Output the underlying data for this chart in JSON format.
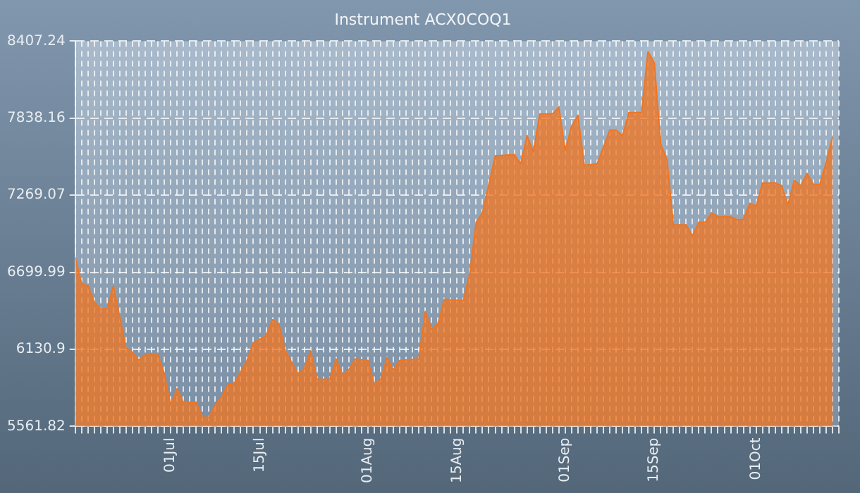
{
  "chart_data": {
    "type": "area",
    "title": "Instrument ACX0COQ1",
    "x": [
      "--06-16",
      "--06-17",
      "--06-18",
      "--06-19",
      "--06-20",
      "--06-21",
      "--06-22",
      "--06-23",
      "--06-24",
      "--06-25",
      "--06-26",
      "--06-27",
      "--06-29",
      "--06-30",
      "--07-01",
      "--07-02",
      "--07-03",
      "--07-05",
      "--07-06",
      "--07-07",
      "--07-08",
      "--07-09",
      "--07-10",
      "--07-11",
      "--07-13",
      "--07-14",
      "--07-16",
      "--07-17",
      "--07-18",
      "--07-19",
      "--07-21",
      "--07-22",
      "--07-23",
      "--07-24",
      "--07-26",
      "--07-27",
      "--07-28",
      "--07-29",
      "--07-30",
      "--08-01",
      "--08-02",
      "--08-03",
      "--08-04",
      "--08-05",
      "--08-06",
      "--08-09",
      "--08-10",
      "--08-11",
      "--08-12",
      "--08-13",
      "--08-16",
      "--08-17",
      "--08-18",
      "--08-19",
      "--08-20",
      "--08-21",
      "--08-24",
      "--08-25",
      "--08-26",
      "--08-27",
      "--08-28",
      "--08-30",
      "--08-31",
      "--09-01",
      "--09-02",
      "--09-03",
      "--09-04",
      "--09-06",
      "--09-08",
      "--09-09",
      "--09-10",
      "--09-11",
      "--09-13",
      "--09-14",
      "--09-15",
      "--09-16",
      "--09-17",
      "--09-18",
      "--09-20",
      "--09-21",
      "--09-22",
      "--09-23",
      "--09-24",
      "--09-25",
      "--09-27",
      "--09-28",
      "--09-29",
      "--09-30",
      "--10-01",
      "--10-02",
      "--10-04",
      "--10-05",
      "--10-06",
      "--10-07",
      "--10-08",
      "--10-09",
      "--10-10",
      "--10-11",
      "--10-12",
      "--10-13"
    ],
    "series": [
      {
        "color": "#ee7624",
        "values": [
          6810,
          6620,
          6600,
          6480,
          6430,
          6430,
          6600,
          6370,
          6140,
          6110,
          6050,
          6090,
          6090,
          5950,
          5720,
          5840,
          5740,
          5740,
          5630,
          5630,
          5720,
          5780,
          5870,
          5880,
          6050,
          6180,
          6230,
          6350,
          6320,
          6120,
          5950,
          5990,
          6120,
          5910,
          5910,
          6060,
          5940,
          5980,
          6060,
          6050,
          5870,
          5910,
          6070,
          5980,
          6050,
          6060,
          6410,
          6280,
          6320,
          6500,
          6490,
          6690,
          7070,
          7140,
          7350,
          7560,
          7570,
          7500,
          7710,
          7590,
          7870,
          7870,
          7920,
          7600,
          7780,
          7860,
          7490,
          7500,
          7750,
          7750,
          7710,
          7880,
          7880,
          8330,
          8250,
          7650,
          7530,
          7050,
          7050,
          6970,
          7070,
          7070,
          7140,
          7110,
          7110,
          7090,
          7090,
          7210,
          7190,
          7360,
          7360,
          7340,
          7200,
          7380,
          7340,
          7430,
          7350,
          7350,
          7510,
          7700
        ]
      }
    ],
    "xlim": [
      "--06-16",
      "--10-14"
    ],
    "xticks": [
      {
        "value": "--06-16",
        "label": null
      },
      {
        "value": "--06-17",
        "label": null
      },
      {
        "value": "--06-18",
        "label": null
      },
      {
        "value": "--06-19",
        "label": null
      },
      {
        "value": "--06-20",
        "label": null
      },
      {
        "value": "--06-21",
        "label": null
      },
      {
        "value": "--06-22",
        "label": null
      },
      {
        "value": "--06-23",
        "label": null
      },
      {
        "value": "--06-24",
        "label": null
      },
      {
        "value": "--06-25",
        "label": null
      },
      {
        "value": "--06-26",
        "label": null
      },
      {
        "value": "--06-27",
        "label": null
      },
      {
        "value": "--06-28",
        "label": null
      },
      {
        "value": "--06-29",
        "label": null
      },
      {
        "value": "--06-30",
        "label": null
      },
      {
        "value": "--07-01",
        "label": "01Jul"
      },
      {
        "value": "--07-02",
        "label": null
      },
      {
        "value": "--07-03",
        "label": null
      },
      {
        "value": "--07-04",
        "label": null
      },
      {
        "value": "--07-05",
        "label": null
      },
      {
        "value": "--07-06",
        "label": null
      },
      {
        "value": "--07-07",
        "label": null
      },
      {
        "value": "--07-08",
        "label": null
      },
      {
        "value": "--07-09",
        "label": null
      },
      {
        "value": "--07-10",
        "label": null
      },
      {
        "value": "--07-11",
        "label": null
      },
      {
        "value": "--07-12",
        "label": null
      },
      {
        "value": "--07-13",
        "label": null
      },
      {
        "value": "--07-14",
        "label": null
      },
      {
        "value": "--07-15",
        "label": "15Jul"
      },
      {
        "value": "--07-16",
        "label": null
      },
      {
        "value": "--07-17",
        "label": null
      },
      {
        "value": "--07-18",
        "label": null
      },
      {
        "value": "--07-19",
        "label": null
      },
      {
        "value": "--07-20",
        "label": null
      },
      {
        "value": "--07-21",
        "label": null
      },
      {
        "value": "--07-22",
        "label": null
      },
      {
        "value": "--07-23",
        "label": null
      },
      {
        "value": "--07-24",
        "label": null
      },
      {
        "value": "--07-25",
        "label": null
      },
      {
        "value": "--07-26",
        "label": null
      },
      {
        "value": "--07-27",
        "label": null
      },
      {
        "value": "--07-28",
        "label": null
      },
      {
        "value": "--07-29",
        "label": null
      },
      {
        "value": "--07-30",
        "label": null
      },
      {
        "value": "--07-31",
        "label": null
      },
      {
        "value": "--08-01",
        "label": "01Aug"
      },
      {
        "value": "--08-02",
        "label": null
      },
      {
        "value": "--08-03",
        "label": null
      },
      {
        "value": "--08-04",
        "label": null
      },
      {
        "value": "--08-05",
        "label": null
      },
      {
        "value": "--08-06",
        "label": null
      },
      {
        "value": "--08-07",
        "label": null
      },
      {
        "value": "--08-08",
        "label": null
      },
      {
        "value": "--08-09",
        "label": null
      },
      {
        "value": "--08-10",
        "label": null
      },
      {
        "value": "--08-11",
        "label": null
      },
      {
        "value": "--08-12",
        "label": null
      },
      {
        "value": "--08-13",
        "label": null
      },
      {
        "value": "--08-14",
        "label": null
      },
      {
        "value": "--08-15",
        "label": "15Aug"
      },
      {
        "value": "--08-16",
        "label": null
      },
      {
        "value": "--08-17",
        "label": null
      },
      {
        "value": "--08-18",
        "label": null
      },
      {
        "value": "--08-19",
        "label": null
      },
      {
        "value": "--08-20",
        "label": null
      },
      {
        "value": "--08-21",
        "label": null
      },
      {
        "value": "--08-22",
        "label": null
      },
      {
        "value": "--08-23",
        "label": null
      },
      {
        "value": "--08-24",
        "label": null
      },
      {
        "value": "--08-25",
        "label": null
      },
      {
        "value": "--08-26",
        "label": null
      },
      {
        "value": "--08-27",
        "label": null
      },
      {
        "value": "--08-28",
        "label": null
      },
      {
        "value": "--08-29",
        "label": null
      },
      {
        "value": "--08-30",
        "label": null
      },
      {
        "value": "--08-31",
        "label": null
      },
      {
        "value": "--09-01",
        "label": "01Sep"
      },
      {
        "value": "--09-02",
        "label": null
      },
      {
        "value": "--09-03",
        "label": null
      },
      {
        "value": "--09-04",
        "label": null
      },
      {
        "value": "--09-05",
        "label": null
      },
      {
        "value": "--09-06",
        "label": null
      },
      {
        "value": "--09-07",
        "label": null
      },
      {
        "value": "--09-08",
        "label": null
      },
      {
        "value": "--09-09",
        "label": null
      },
      {
        "value": "--09-10",
        "label": null
      },
      {
        "value": "--09-11",
        "label": null
      },
      {
        "value": "--09-12",
        "label": null
      },
      {
        "value": "--09-13",
        "label": null
      },
      {
        "value": "--09-14",
        "label": null
      },
      {
        "value": "--09-15",
        "label": "15Sep"
      },
      {
        "value": "--09-16",
        "label": null
      },
      {
        "value": "--09-17",
        "label": null
      },
      {
        "value": "--09-18",
        "label": null
      },
      {
        "value": "--09-19",
        "label": null
      },
      {
        "value": "--09-20",
        "label": null
      },
      {
        "value": "--09-21",
        "label": null
      },
      {
        "value": "--09-22",
        "label": null
      },
      {
        "value": "--09-23",
        "label": null
      },
      {
        "value": "--09-24",
        "label": null
      },
      {
        "value": "--09-25",
        "label": null
      },
      {
        "value": "--09-26",
        "label": null
      },
      {
        "value": "--09-27",
        "label": null
      },
      {
        "value": "--09-28",
        "label": null
      },
      {
        "value": "--09-29",
        "label": null
      },
      {
        "value": "--09-30",
        "label": null
      },
      {
        "value": "--10-01",
        "label": "01Oct"
      },
      {
        "value": "--10-02",
        "label": null
      },
      {
        "value": "--10-03",
        "label": null
      },
      {
        "value": "--10-04",
        "label": null
      },
      {
        "value": "--10-05",
        "label": null
      },
      {
        "value": "--10-06",
        "label": null
      },
      {
        "value": "--10-07",
        "label": null
      },
      {
        "value": "--10-08",
        "label": null
      },
      {
        "value": "--10-09",
        "label": null
      },
      {
        "value": "--10-10",
        "label": null
      },
      {
        "value": "--10-11",
        "label": null
      },
      {
        "value": "--10-12",
        "label": null
      },
      {
        "value": "--10-13",
        "label": null
      },
      {
        "value": "--10-14",
        "label": null
      }
    ],
    "ylim": [
      5561.82,
      8407.24
    ],
    "yticks": [
      5561.82,
      6130.9,
      6699.99,
      7269.07,
      7838.16,
      8407.24
    ],
    "grid": true,
    "legend": false,
    "marker": "none",
    "line_style": "solid"
  }
}
